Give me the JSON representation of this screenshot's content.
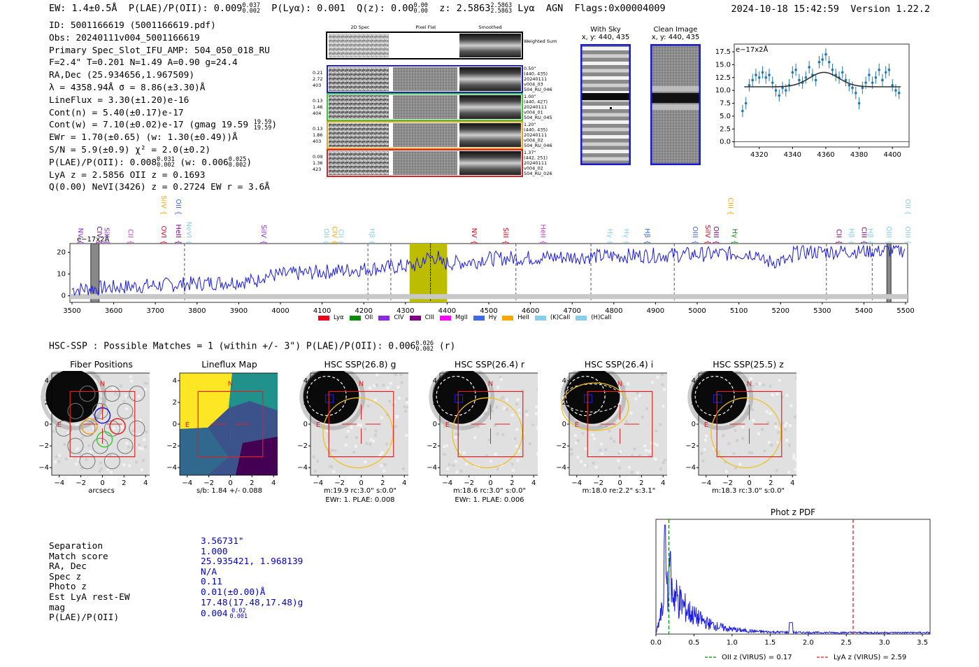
{
  "header": {
    "ew": "EW: 1.4±0.5Å",
    "plae_label": "P(LAE)/P(OII): 0.009",
    "plae_hi": "0.037",
    "plae_lo": "0.002",
    "plya": "P(Lyα): 0.001",
    "qz_label": "Q(z): 0.00",
    "qz_hi": "0.00",
    "qz_lo": "0.00",
    "z_label": "z: 2.5863",
    "z_hi": "2.5863",
    "z_lo": "2.5863",
    "line": "Lyα",
    "agn": "AGN",
    "flags": "Flags:0x00004009",
    "datetime": "2024-10-18 15:42:59",
    "version": "Version 1.22.2"
  },
  "info": {
    "id": "ID: 5001166619 (5001166619.pdf)",
    "obs": "Obs: 20240111v004_5001166619",
    "primary": "Primary Spec_Slot_IFU_AMP: 504_050_018_RU",
    "params": "F=2.4\"  T=0.201  N=1.49  A=0.90  g=24.4",
    "radec": "RA,Dec (25.934656,1.967509)",
    "lambda": "λ = 4358.94Å   σ = 8.86(±3.30)Å",
    "lineflux": "LineFlux = 3.30(±1.20)e-16",
    "contn": "Cont(n) = 5.40(±0.17)e-17",
    "contw": "Cont(w) = 7.10(±0.02)e-17 (gmag 19.59",
    "contw_hi": "19.59",
    "contw_lo": "19.59",
    "ewr": "EWr = 1.70(±0.65) (w: 1.30(±0.49))Å",
    "sn": "S/N = 5.9(±0.9)  χ² = 2.0(±0.2)",
    "plae2": "P(LAE)/P(OII): 0.008",
    "plae2_hi": "0.031",
    "plae2_lo": "0.002",
    "plae2_w": "(w: 0.006",
    "plae2_w_hi": "0.025",
    "plae2_w_lo": "0.002",
    "lya": "LyA z = 2.5856  OII z = 0.1693",
    "q": "Q(0.00) NeVI(3426) z = 0.2724  EW r = 3.6Å"
  },
  "cutouts": {
    "col_2d": "2D Spec",
    "col_flat": "Pixel Flat",
    "col_smooth": "Smoothed",
    "weighted": "Weighted Sum",
    "rows": [
      {
        "l1": "0.21",
        "l2": "2.72",
        "l3": "403",
        "r1": "0.50\"",
        "r2": "(440, 435)",
        "r3": "20240111",
        "r4": "v004_03",
        "r5": "504_RU_046",
        "color": "#1f1fd0"
      },
      {
        "l1": "0.13",
        "l2": "1.46",
        "l3": "404",
        "r1": "1.00\"",
        "r2": "(440, 427)",
        "r3": "20240111",
        "r4": "v004_01",
        "r5": "504_RU_045",
        "color": "#33cc33"
      },
      {
        "l1": "0.13",
        "l2": "1.86",
        "l3": "403",
        "r1": "1.20\"",
        "r2": "(440, 435)",
        "r3": "20240111",
        "r4": "v004_02",
        "r5": "504_RU_046",
        "color": "#f0a020"
      },
      {
        "l1": "0.09",
        "l2": "1.36",
        "l3": "423",
        "r1": "1.37\"",
        "r2": "(442, 251)",
        "r3": "20240111",
        "r4": "v004_02",
        "r5": "504_RU_026",
        "color": "#e02020"
      }
    ]
  },
  "sky": {
    "with_title": "With Sky",
    "with_sub": "x, y: 440, 435",
    "clean_title": "Clean Image",
    "clean_sub": "x, y: 440, 435"
  },
  "legend_lines": [
    {
      "name": "Lyα",
      "color": "#e8001c"
    },
    {
      "name": "OII",
      "color": "#0b8a0b"
    },
    {
      "name": "CIV",
      "color": "#8a2be2"
    },
    {
      "name": "CIII",
      "color": "#800080"
    },
    {
      "name": "MgII",
      "color": "#ff00ff"
    },
    {
      "name": "Hγ",
      "color": "#4169e1"
    },
    {
      "name": "HeII",
      "color": "#ffa500"
    },
    {
      "name": "(K)CaII",
      "color": "#87ceeb"
    },
    {
      "name": "(H)CaII",
      "color": "#87ceeb"
    }
  ],
  "hsc": {
    "title": "HSC-SSP : Possible Matches = 1 (within +/- 3\")  P(LAE)/P(OII): 0.006",
    "title_hi": "0.026",
    "title_lo": "0.002",
    "title_band": "(r)",
    "panels": [
      {
        "title": "Fiber Positions",
        "cap1": "arcsecs",
        "cap2": ""
      },
      {
        "title": "Lineflux Map",
        "cap1": "s/b: 1.84 +/- 0.088",
        "cap2": ""
      },
      {
        "title": "HSC SSP(26.8) g",
        "cap1": "m:19.9 rc:3.0\"  s:0.0\"",
        "cap2": "EWr: 1. PLAE: 0.008"
      },
      {
        "title": "HSC SSP(26.4) r",
        "cap1": "m:18.6 rc:3.0\"  s:0.0\"",
        "cap2": "EWr: 1. PLAE: 0.006"
      },
      {
        "title": "HSC SSP(26.4) i",
        "cap1": "m:18.0  re:2.2\"  s:3.1\"",
        "cap2": ""
      },
      {
        "title": "HSC SSP(25.5) z",
        "cap1": "m:18.3 rc:3.0\"  s:0.0\"",
        "cap2": ""
      }
    ],
    "north": "N",
    "east": "E",
    "ticks": [
      "−4",
      "−2",
      "0",
      "2",
      "4"
    ]
  },
  "summary": {
    "labels": [
      "Separation",
      "Match score",
      "RA, Dec",
      "Spec z",
      "Photo z",
      "Est LyA rest-EW",
      "mag",
      "P(LAE)/P(OII)"
    ],
    "values": [
      "3.56731\"",
      "1.000",
      "25.935421, 1.968139",
      "N/A",
      "0.11",
      "0.01(±0.00)Å",
      "17.48(17.48,17.48)g",
      "0.004"
    ],
    "plae_hi": "0.02",
    "plae_lo": "0.001"
  },
  "chart_data": [
    {
      "type": "scatter",
      "name": "line fit zoom",
      "ylabel_unit": "e−17x2Å",
      "xlim": [
        4305,
        4410
      ],
      "ylim": [
        -1,
        19
      ],
      "xticks": [
        4320,
        4340,
        4360,
        4380,
        4400
      ],
      "yticks": [
        0.0,
        2.5,
        5.0,
        7.5,
        10.0,
        12.5,
        15.0,
        17.5
      ],
      "x": [
        4310,
        4312,
        4314,
        4316,
        4318,
        4320,
        4322,
        4324,
        4326,
        4328,
        4330,
        4332,
        4334,
        4336,
        4338,
        4340,
        4342,
        4344,
        4346,
        4348,
        4350,
        4352,
        4354,
        4356,
        4358,
        4360,
        4362,
        4364,
        4366,
        4368,
        4370,
        4372,
        4374,
        4376,
        4378,
        4380,
        4382,
        4384,
        4386,
        4388,
        4390,
        4392,
        4394,
        4396,
        4398,
        4400,
        4402,
        4404
      ],
      "y": [
        6.0,
        7.5,
        11.0,
        12.0,
        13.0,
        12.5,
        13.5,
        12.5,
        13.0,
        11.5,
        10.0,
        9.0,
        10.5,
        10.0,
        11.0,
        13.5,
        14.0,
        12.0,
        11.5,
        12.5,
        14.5,
        13.0,
        12.0,
        15.5,
        16.0,
        17.0,
        15.5,
        14.0,
        13.0,
        12.5,
        13.5,
        12.0,
        11.0,
        10.5,
        9.5,
        7.5,
        10.5,
        11.5,
        13.0,
        11.5,
        12.5,
        14.0,
        12.0,
        13.5,
        14.0,
        11.0,
        10.0,
        9.5
      ],
      "fit": {
        "baseline": 10.7,
        "amp": 2.8,
        "center": 4358.9,
        "sigma": 8.86,
        "xmin": 4311,
        "xmax": 4405
      }
    },
    {
      "type": "line",
      "name": "full spectrum",
      "ylabel_unit": "e−17x2Å",
      "xlim": [
        3495,
        5505
      ],
      "ylim": [
        -3,
        24
      ],
      "xticks": [
        3500,
        3600,
        3700,
        3800,
        3900,
        4000,
        4100,
        4200,
        4300,
        4400,
        4500,
        4600,
        4700,
        4800,
        4900,
        5000,
        5100,
        5200,
        5300,
        5400,
        5500
      ],
      "yticks": [
        0,
        10,
        20
      ],
      "highlight": [
        4310,
        4400
      ],
      "masked": [
        [
          3545,
          3565
        ],
        [
          5455,
          5465
        ]
      ],
      "dashed": [
        3770,
        4210,
        4265,
        4360,
        4565,
        4745,
        4945,
        5310,
        5420
      ],
      "line_labels": [
        {
          "t": "NV",
          "x": 3510,
          "c": "#8a2be2",
          "r": 1
        },
        {
          "t": "CIV",
          "x": 3555,
          "c": "#800080",
          "r": 1
        },
        {
          "t": "SiII",
          "x": 3573,
          "c": "#8a2be2",
          "r": 1
        },
        {
          "t": "CII",
          "x": 3630,
          "c": "#c040c0",
          "r": 1
        },
        {
          "t": "OVI",
          "x": 3710,
          "c": "#e8001c",
          "r": 1
        },
        {
          "t": "SiIV",
          "x": 3710,
          "c": "#ffa500",
          "r": 0
        },
        {
          "t": "HeII",
          "x": 3745,
          "c": "#800080",
          "r": 1
        },
        {
          "t": "OII",
          "x": 3745,
          "c": "#4169e1",
          "r": 0
        },
        {
          "t": "NeVI",
          "x": 3770,
          "c": "#87ceeb",
          "r": 1
        },
        {
          "t": "SiIV",
          "x": 3950,
          "c": "#8a2be2",
          "r": 1
        },
        {
          "t": "OII",
          "x": 4100,
          "c": "#87ceeb",
          "r": 1
        },
        {
          "t": "CIV",
          "x": 4120,
          "c": "#ffa500",
          "r": 1
        },
        {
          "t": "CII",
          "x": 4135,
          "c": "#87ceeb",
          "r": 1
        },
        {
          "t": "Hβ",
          "x": 4210,
          "c": "#87ceeb",
          "r": 1
        },
        {
          "t": "NV",
          "x": 4455,
          "c": "#e8001c",
          "r": 1
        },
        {
          "t": "SiII",
          "x": 4530,
          "c": "#e8001c",
          "r": 1
        },
        {
          "t": "HeII",
          "x": 4620,
          "c": "#c040c0",
          "r": 1
        },
        {
          "t": "Hγ",
          "x": 4780,
          "c": "#87ceeb",
          "r": 1
        },
        {
          "t": "Hγ",
          "x": 4820,
          "c": "#87ceeb",
          "r": 1
        },
        {
          "t": "Hβ",
          "x": 4870,
          "c": "#4169e1",
          "r": 1
        },
        {
          "t": "OIII",
          "x": 4985,
          "c": "#4169e1",
          "r": 1
        },
        {
          "t": "SiIV",
          "x": 5015,
          "c": "#e8001c",
          "r": 1
        },
        {
          "t": "OIII",
          "x": 5035,
          "c": "#800080",
          "r": 1
        },
        {
          "t": "CIII",
          "x": 5070,
          "c": "#ffa500",
          "r": 0
        },
        {
          "t": "Hγ",
          "x": 5080,
          "c": "#0b8a0b",
          "r": 1
        },
        {
          "t": "CII",
          "x": 5330,
          "c": "#800080",
          "r": 1
        },
        {
          "t": "Hβ",
          "x": 5360,
          "c": "#87ceeb",
          "r": 1
        },
        {
          "t": "CIII",
          "x": 5390,
          "c": "#800080",
          "r": 1
        },
        {
          "t": "Hβ",
          "x": 5405,
          "c": "#87ceeb",
          "r": 1
        },
        {
          "t": "OIII",
          "x": 5450,
          "c": "#87ceeb",
          "r": 1
        },
        {
          "t": "OIII",
          "x": 5495,
          "c": "#87ceeb",
          "r": 1
        },
        {
          "t": "OII",
          "x": 5495,
          "c": "#87ceeb",
          "r": 0
        }
      ]
    },
    {
      "type": "line",
      "name": "Phot z PDF",
      "title": "Phot z PDF",
      "xlim": [
        0,
        3.6
      ],
      "ylim": [
        0,
        1
      ],
      "xticks": [
        0.0,
        0.5,
        1.0,
        1.5,
        2.0,
        2.5,
        3.0,
        3.5
      ],
      "vlines": [
        {
          "x": 0.17,
          "color": "#0b8a0b",
          "label": "OII z (VIRUS) = 0.17"
        },
        {
          "x": 2.59,
          "color": "#e02020",
          "label": "LyA z (VIRUS) = 2.59"
        }
      ]
    }
  ]
}
